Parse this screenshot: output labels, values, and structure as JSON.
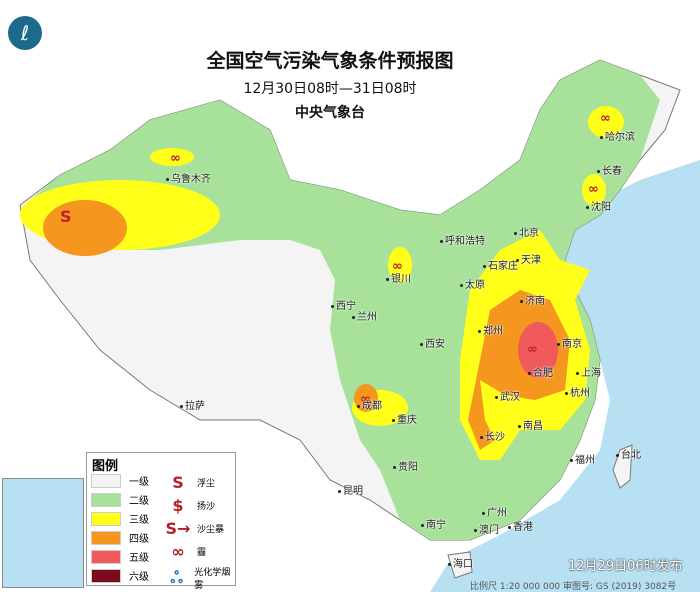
{
  "title": "全国空气污染气象条件预报图",
  "period": "12月30日08时—31日08时",
  "agency": "中央气象台",
  "issued": "12月29日06时发布",
  "scale_note": "比例尺 1:20 000 000    审图号: GS (2019) 3082号",
  "legend": {
    "title": "图例",
    "levels": [
      {
        "label": "一级",
        "color": "#f4f4f4"
      },
      {
        "label": "二级",
        "color": "#a8e29a"
      },
      {
        "label": "三级",
        "color": "#ffff1a"
      },
      {
        "label": "四级",
        "color": "#f5961e"
      },
      {
        "label": "五级",
        "color": "#f05a5a"
      },
      {
        "label": "六级",
        "color": "#7a0a1e"
      }
    ],
    "symbols": [
      {
        "icon": "floating-dust-icon",
        "glyph": "S",
        "label": "浮尘"
      },
      {
        "icon": "blowing-sand-icon",
        "glyph": "$",
        "label": "扬沙"
      },
      {
        "icon": "sandstorm-icon",
        "glyph": "S→",
        "label": "沙尘暴"
      },
      {
        "icon": "haze-icon",
        "glyph": "∞",
        "label": "霾"
      },
      {
        "icon": "photochemical-smog-icon",
        "glyph": "ஃ",
        "label": "光化学烟雾"
      }
    ]
  },
  "cities": [
    "乌鲁木齐",
    "哈尔滨",
    "长春",
    "沈阳",
    "北京",
    "天津",
    "呼和浩特",
    "银川",
    "太原",
    "石家庄",
    "济南",
    "西宁",
    "兰州",
    "郑州",
    "西安",
    "南京",
    "合肥",
    "上海",
    "武汉",
    "杭州",
    "拉萨",
    "成都",
    "重庆",
    "长沙",
    "南昌",
    "贵阳",
    "昆明",
    "福州",
    "台北",
    "广州",
    "香港",
    "澳门",
    "南宁",
    "海口"
  ],
  "colors": {
    "sea": "#b8e0f3",
    "land": "#f4f4f4"
  }
}
